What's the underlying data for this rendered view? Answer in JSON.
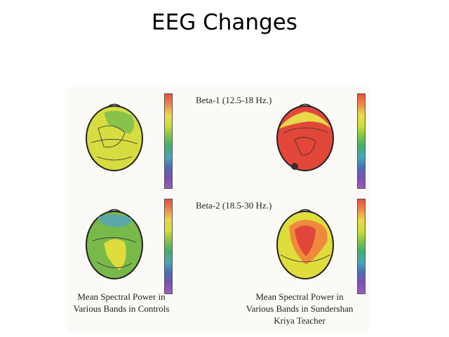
{
  "title": "EEG Changes",
  "bands": [
    {
      "label": "Beta-1 (12.5-18 Hz.)"
    },
    {
      "label": "Beta-2 (18.5-30 Hz.)"
    }
  ],
  "captions": {
    "controls": [
      "Mean Spectral Power in",
      "Various Bands in Controls"
    ],
    "teacher": [
      "Mean Spectral Power in",
      "Various Bands in Sundershan",
      "Kriya Teacher"
    ]
  },
  "colors": {
    "scale": [
      "#e8503a",
      "#ef8a4a",
      "#e9d84a",
      "#cfdf3a",
      "#7fc447",
      "#3fae6e",
      "#48a7b8",
      "#4b6fb8",
      "#7a4fb0",
      "#9c5cc0"
    ],
    "yellow": "#dedd3c",
    "green": "#78b94a",
    "red": "#e0473a",
    "orange": "#ef8a3c"
  }
}
